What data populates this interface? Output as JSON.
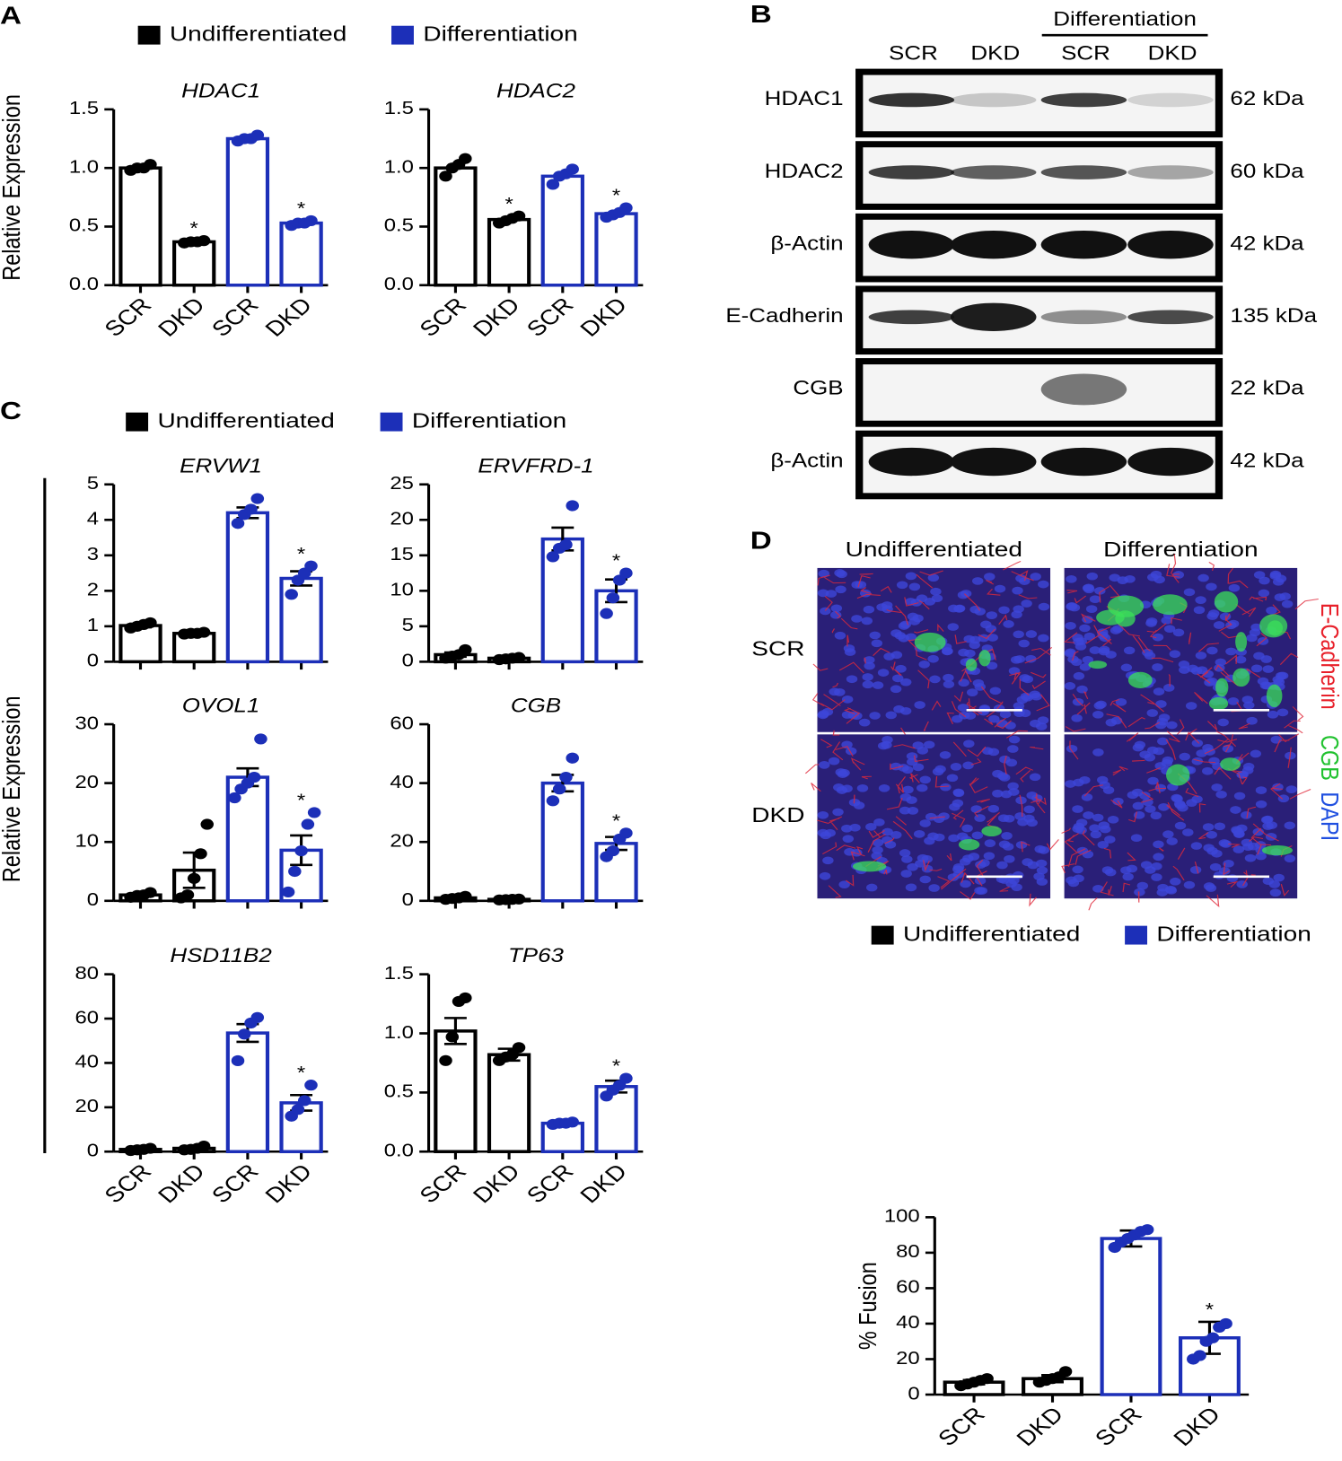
{
  "panel_labels": [
    "A",
    "B",
    "C",
    "D"
  ],
  "shared_y_labels": [
    "Relative Expression",
    "Relative Expression"
  ],
  "chart_data": [
    {
      "type": "bar",
      "title": "HDAC1",
      "categories": [
        "SCR",
        "DKD",
        "SCR",
        "DKD"
      ],
      "ylim": [
        0,
        1.5
      ],
      "yticks": [
        {
          "value": 0,
          "label": "0.0"
        },
        0.5,
        {
          "value": 1,
          "label": "1.0"
        },
        1.5
      ],
      "series": [
        {
          "name": "Undifferentiated",
          "color": "#000000",
          "values": [
            1.0,
            0.37,
            null,
            null
          ],
          "points": [
            [
              0.98,
              1.0,
              1.0,
              1.03
            ],
            [
              0.36,
              0.37,
              0.37,
              0.38
            ],
            null,
            null
          ],
          "annotations": [
            null,
            "*",
            null,
            null
          ]
        },
        {
          "name": "Differentiation",
          "color": "#1c2fb8",
          "values": [
            null,
            null,
            1.25,
            0.53
          ],
          "points": [
            null,
            null,
            [
              1.23,
              1.25,
              1.25,
              1.28
            ],
            [
              0.51,
              0.53,
              0.53,
              0.55
            ]
          ],
          "annotations": [
            null,
            null,
            null,
            "*"
          ]
        }
      ]
    },
    {
      "type": "bar",
      "title": "HDAC2",
      "categories": [
        "SCR",
        "DKD",
        "SCR",
        "DKD"
      ],
      "ylim": [
        0,
        1.5
      ],
      "yticks": [
        {
          "value": 0,
          "label": "0.0"
        },
        0.5,
        {
          "value": 1,
          "label": "1.0"
        },
        1.5
      ],
      "series": [
        {
          "name": "Undifferentiated",
          "color": "#000000",
          "values": [
            1.0,
            0.56,
            null,
            null
          ],
          "points": [
            [
              0.93,
              1.0,
              1.03,
              1.08
            ],
            [
              0.53,
              0.55,
              0.57,
              0.59
            ],
            null,
            null
          ],
          "annotations": [
            null,
            "*",
            null,
            null
          ]
        },
        {
          "name": "Differentiation",
          "color": "#1c2fb8",
          "values": [
            null,
            null,
            0.93,
            0.61
          ],
          "points": [
            null,
            null,
            [
              0.86,
              0.93,
              0.95,
              0.99
            ],
            [
              0.58,
              0.6,
              0.62,
              0.66
            ]
          ],
          "annotations": [
            null,
            null,
            null,
            "*"
          ]
        }
      ]
    },
    {
      "type": "bar",
      "title": "ERVW1",
      "ylim": [
        0,
        5
      ],
      "yticks": [
        0,
        1,
        2,
        3,
        4,
        5
      ],
      "series": [
        {
          "name": "Undifferentiated",
          "color": "#000000",
          "values": [
            1.02,
            0.8,
            null,
            null
          ],
          "errors": [
            0.05,
            0.03,
            null,
            null
          ],
          "points": [
            [
              0.95,
              1.0,
              1.05,
              1.1
            ],
            [
              0.78,
              0.8,
              0.8,
              0.83
            ],
            null,
            null
          ]
        },
        {
          "name": "Differentiation",
          "color": "#1c2fb8",
          "values": [
            null,
            null,
            4.2,
            2.35
          ],
          "errors": [
            null,
            null,
            0.15,
            0.2
          ],
          "points": [
            null,
            null,
            [
              3.9,
              4.15,
              4.3,
              4.6
            ],
            [
              1.9,
              2.3,
              2.5,
              2.7
            ]
          ],
          "annotations": [
            null,
            null,
            null,
            "*"
          ]
        }
      ]
    },
    {
      "type": "bar",
      "title": "ERVFRD-1",
      "ylim": [
        0,
        25
      ],
      "yticks": [
        0,
        5,
        10,
        15,
        20,
        25
      ],
      "series": [
        {
          "name": "Undifferentiated",
          "color": "#000000",
          "values": [
            1.0,
            0.5,
            null,
            null
          ],
          "errors": [
            0.3,
            0.1,
            null,
            null
          ],
          "points": [
            [
              0.5,
              0.8,
              1.0,
              1.7
            ],
            [
              0.3,
              0.4,
              0.5,
              0.6
            ],
            null,
            null
          ]
        },
        {
          "name": "Differentiation",
          "color": "#1c2fb8",
          "values": [
            null,
            null,
            17.3,
            10.0
          ],
          "errors": [
            null,
            null,
            1.6,
            1.6
          ],
          "points": [
            null,
            null,
            [
              14.8,
              16.0,
              16.5,
              22.0
            ],
            [
              6.8,
              9.0,
              11.5,
              12.5
            ]
          ],
          "annotations": [
            null,
            null,
            null,
            "*"
          ]
        }
      ]
    },
    {
      "type": "bar",
      "title": "OVOL1",
      "ylim": [
        0,
        30
      ],
      "yticks": [
        0,
        10,
        20,
        30
      ],
      "series": [
        {
          "name": "Undifferentiated",
          "color": "#000000",
          "values": [
            1.0,
            5.2,
            null,
            null
          ],
          "errors": [
            0.3,
            3.0,
            null,
            null
          ],
          "points": [
            [
              0.6,
              0.9,
              1.0,
              1.4
            ],
            [
              0.5,
              1.0,
              3.8,
              8.0,
              13.0
            ],
            null,
            null
          ]
        },
        {
          "name": "Differentiation",
          "color": "#1c2fb8",
          "values": [
            null,
            null,
            21.0,
            8.6
          ],
          "errors": [
            null,
            null,
            1.5,
            2.5
          ],
          "points": [
            null,
            null,
            [
              17.5,
              19.0,
              20.0,
              21.0,
              27.5
            ],
            [
              1.5,
              5.0,
              8.5,
              13.0,
              15.0
            ]
          ],
          "annotations": [
            null,
            null,
            null,
            "*"
          ]
        }
      ]
    },
    {
      "type": "bar",
      "title": "CGB",
      "ylim": [
        0,
        60
      ],
      "yticks": [
        0,
        20,
        40,
        60
      ],
      "series": [
        {
          "name": "Undifferentiated",
          "color": "#000000",
          "values": [
            1.0,
            0.5,
            null,
            null
          ],
          "errors": [
            0.3,
            0.2,
            null,
            null
          ],
          "points": [
            [
              0.5,
              0.8,
              1.0,
              1.5
            ],
            [
              0.3,
              0.4,
              0.5,
              0.6
            ],
            null,
            null
          ]
        },
        {
          "name": "Differentiation",
          "color": "#1c2fb8",
          "values": [
            null,
            null,
            40.0,
            19.5
          ],
          "errors": [
            null,
            null,
            2.8,
            2.2
          ],
          "points": [
            null,
            null,
            [
              34.0,
              38.0,
              42.0,
              48.5
            ],
            [
              15.0,
              17.0,
              21.0,
              23.0
            ]
          ],
          "annotations": [
            null,
            null,
            null,
            "*"
          ]
        }
      ]
    },
    {
      "type": "bar",
      "title": "HSD11B2",
      "categories": [
        "SCR",
        "DKD",
        "SCR",
        "DKD"
      ],
      "ylim": [
        0,
        80
      ],
      "yticks": [
        0,
        20,
        40,
        60,
        80
      ],
      "series": [
        {
          "name": "Undifferentiated",
          "color": "#000000",
          "values": [
            1.0,
            1.5,
            null,
            null
          ],
          "errors": [
            0.3,
            0.4,
            null,
            null
          ],
          "points": [
            [
              0.5,
              0.8,
              1.0,
              1.5
            ],
            [
              0.8,
              1.0,
              1.5,
              2.5
            ],
            null,
            null
          ]
        },
        {
          "name": "Differentiation",
          "color": "#1c2fb8",
          "values": [
            null,
            null,
            53.5,
            22.0
          ],
          "errors": [
            null,
            null,
            4.0,
            3.5
          ],
          "points": [
            null,
            null,
            [
              41.0,
              53.0,
              58.0,
              60.5
            ],
            [
              16.0,
              19.0,
              23.0,
              30.0
            ]
          ],
          "annotations": [
            null,
            null,
            null,
            "*"
          ]
        }
      ]
    },
    {
      "type": "bar",
      "title": "TP63",
      "categories": [
        "SCR",
        "DKD",
        "SCR",
        "DKD"
      ],
      "ylim": [
        0,
        1.5
      ],
      "yticks": [
        {
          "value": 0,
          "label": "0.0"
        },
        0.5,
        {
          "value": 1,
          "label": "1.0"
        },
        1.5
      ],
      "series": [
        {
          "name": "Undifferentiated",
          "color": "#000000",
          "values": [
            1.02,
            0.82,
            null,
            null
          ],
          "errors": [
            0.11,
            0.05,
            null,
            null
          ],
          "points": [
            [
              0.77,
              0.97,
              1.27,
              1.3
            ],
            [
              0.77,
              0.8,
              0.82,
              0.88
            ],
            null,
            null
          ]
        },
        {
          "name": "Differentiation",
          "color": "#1c2fb8",
          "values": [
            null,
            null,
            0.24,
            0.55
          ],
          "errors": [
            null,
            null,
            0.01,
            0.05
          ],
          "points": [
            null,
            null,
            [
              0.23,
              0.24,
              0.24,
              0.25
            ],
            [
              0.47,
              0.52,
              0.56,
              0.62
            ]
          ],
          "annotations": [
            null,
            null,
            null,
            "*"
          ]
        }
      ]
    },
    {
      "type": "bar",
      "y_label": "% Fusion",
      "categories": [
        "SCR",
        "DKD",
        "SCR",
        "DKD"
      ],
      "ylim": [
        0,
        100
      ],
      "yticks": [
        0,
        20,
        40,
        60,
        80,
        100
      ],
      "series": [
        {
          "name": "Undifferentiated",
          "color": "#000000",
          "values": [
            7,
            9,
            null,
            null
          ],
          "errors": [
            1.2,
            2.0,
            null,
            null
          ],
          "points": [
            [
              5,
              6,
              7,
              8,
              9
            ],
            [
              7,
              8,
              9,
              10,
              13
            ],
            null,
            null
          ]
        },
        {
          "name": "Differentiation",
          "color": "#1c2fb8",
          "values": [
            null,
            null,
            88,
            32
          ],
          "errors": [
            null,
            null,
            4.5,
            9
          ],
          "points": [
            null,
            null,
            [
              83,
              86,
              88,
              90,
              92,
              93
            ],
            [
              20,
              22,
              30,
              32,
              38,
              40
            ]
          ],
          "annotations": [
            null,
            null,
            null,
            "*"
          ]
        }
      ]
    }
  ],
  "blot": {
    "group_label": "Differentiation",
    "lanes": [
      "SCR",
      "DKD",
      "SCR",
      "DKD"
    ],
    "rows": [
      {
        "protein": "HDAC1",
        "size": "62 kDa"
      },
      {
        "protein": "HDAC2",
        "size": "60 kDa"
      },
      {
        "protein": "β-Actin",
        "size": "42 kDa"
      },
      {
        "protein": "E-Cadherin",
        "size": "135 kDa"
      },
      {
        "protein": "CGB",
        "size": "22 kDa"
      },
      {
        "protein": "β-Actin",
        "size": "42 kDa"
      }
    ]
  },
  "images": {
    "columns": [
      "Undifferentiated",
      "Differentiation"
    ],
    "rows": [
      "SCR",
      "DKD"
    ],
    "stain_labels": [
      {
        "text": "E-Cadherin",
        "color": "#e8202a"
      },
      {
        "text": "CGB",
        "color": "#22c230"
      },
      {
        "text": "DAPI",
        "color": "#1f4fe0"
      }
    ]
  }
}
